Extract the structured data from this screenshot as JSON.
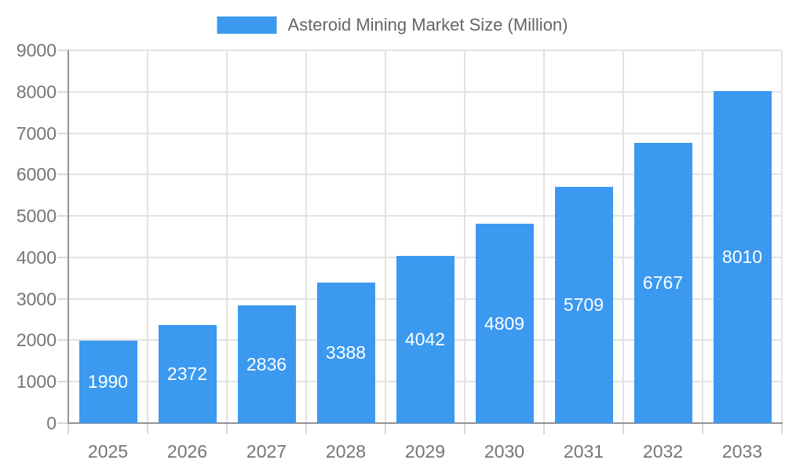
{
  "chart_data": {
    "type": "bar",
    "title": "Asteroid Mining Market Size (Million)",
    "legend": [
      "Asteroid Mining Market Size (Million)"
    ],
    "legend_position": "top-center",
    "categories": [
      "2025",
      "2026",
      "2027",
      "2028",
      "2029",
      "2030",
      "2031",
      "2032",
      "2033"
    ],
    "values": [
      1990,
      2372,
      2836,
      3388,
      4042,
      4809,
      5709,
      6767,
      8010
    ],
    "xlabel": "",
    "ylabel": "",
    "ylim": [
      0,
      9000
    ],
    "ytick_interval": 1000,
    "ytick_labels": [
      "0",
      "1000",
      "2000",
      "3000",
      "4000",
      "5000",
      "6000",
      "7000",
      "8000",
      "9000"
    ],
    "grid": true,
    "value_label_position": "inside-center",
    "colors": {
      "bar": "#3b99f0",
      "gridline": "#e3e3e3",
      "axis": "#949494",
      "tick": "#d9d9d9",
      "axis_text": "#757575",
      "legend_text": "#666666",
      "value_text": "#ffffff",
      "background": "#ffffff"
    }
  }
}
